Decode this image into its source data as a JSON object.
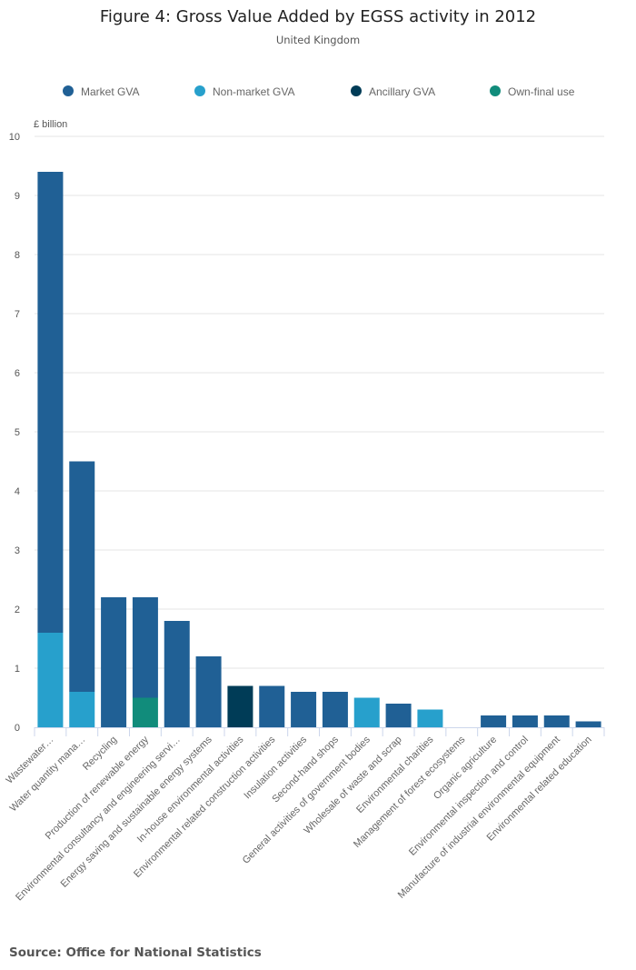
{
  "title": "Figure 4: Gross Value Added by EGSS activity in 2012",
  "subtitle": "United Kingdom",
  "source": "Source: Office for National Statistics",
  "chart_data": {
    "type": "bar",
    "stacked": true,
    "ylabel": "£ billion",
    "ylim": [
      0,
      10
    ],
    "yticks": [
      0,
      1,
      2,
      3,
      4,
      5,
      6,
      7,
      8,
      9,
      10
    ],
    "grid": true,
    "legend_placement": "bottom",
    "categories": [
      "Wastewater…",
      "Water quantity mana…",
      "Recycling",
      "Production of renewable energy",
      "Environmental consultancy and engineering servi…",
      "Energy saving and sustainable energy systems",
      "In-house environmental activities",
      "Environmental related construction activities",
      "Insulation activities",
      "Second-hand shops",
      "General activities of government bodies",
      "Wholesale of waste and scrap",
      "Environmental charities",
      "Management of forest ecosystems",
      "Organic agriculture",
      "Environmental inspection and control",
      "Manufacture of industrial environmental equipment",
      "Environmental related education"
    ],
    "series": [
      {
        "name": "Market GVA",
        "color": "#206095",
        "values": [
          7.8,
          3.9,
          2.2,
          1.7,
          1.8,
          1.2,
          0,
          0.7,
          0.6,
          0.6,
          0,
          0.4,
          0,
          0,
          0.2,
          0.2,
          0.2,
          0.1
        ]
      },
      {
        "name": "Non-market GVA",
        "color": "#27a0cc",
        "values": [
          1.6,
          0.6,
          0,
          0,
          0,
          0,
          0,
          0,
          0,
          0,
          0.5,
          0,
          0.3,
          0,
          0,
          0,
          0,
          0
        ]
      },
      {
        "name": "Ancillary GVA",
        "color": "#003c57",
        "values": [
          0,
          0,
          0,
          0,
          0,
          0,
          0.7,
          0,
          0,
          0,
          0,
          0,
          0,
          0,
          0,
          0,
          0,
          0
        ]
      },
      {
        "name": "Own-final use",
        "color": "#118c7b",
        "values": [
          0,
          0,
          0,
          0.5,
          0,
          0,
          0,
          0,
          0,
          0,
          0,
          0,
          0,
          0,
          0,
          0,
          0,
          0
        ]
      }
    ],
    "stack_order": [
      "Non-market GVA",
      "Own-final use",
      "Ancillary GVA",
      "Market GVA"
    ]
  }
}
